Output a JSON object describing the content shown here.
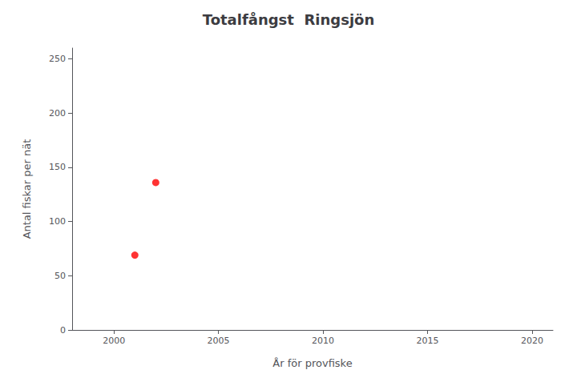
{
  "chart_data": {
    "type": "scatter",
    "title": "Totalfångst  Ringsjön",
    "xlabel": "År för provfiske",
    "ylabel": "Antal fiskar per nät",
    "x": [
      2001,
      2002
    ],
    "values": [
      69,
      136
    ],
    "color": "#ff0000",
    "xlim": [
      1998,
      2021
    ],
    "ylim": [
      0,
      260
    ],
    "xticks": [
      2000,
      2005,
      2010,
      2015,
      2020
    ],
    "yticks": [
      0,
      50,
      100,
      150,
      200,
      250
    ],
    "grid": false
  }
}
